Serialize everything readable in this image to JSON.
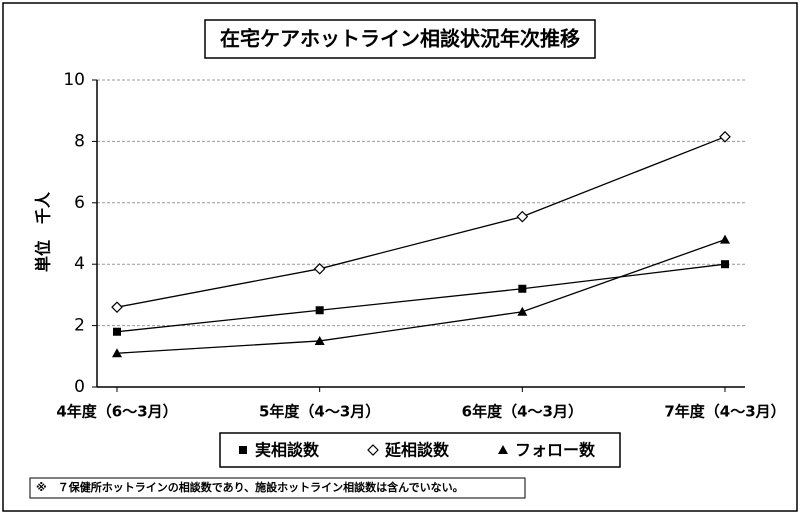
{
  "chart_data": {
    "type": "line",
    "title": "在宅ケアホットライン相談状況年次推移",
    "y_label": "単位　千人",
    "categories": [
      "4年度（6〜3月）",
      "5年度（4〜3月）",
      "6年度（4〜3月）",
      "7年度（4〜3月）"
    ],
    "series": [
      {
        "name": "実相談数",
        "color": "#000000",
        "marker": "square",
        "values": [
          1.8,
          2.5,
          3.2,
          4.0
        ]
      },
      {
        "name": "延相談数",
        "color": "#000000",
        "marker": "diamond",
        "values": [
          2.6,
          3.85,
          5.55,
          8.15
        ]
      },
      {
        "name": "フォロー数",
        "color": "#000000",
        "marker": "triangle",
        "values": [
          1.1,
          1.5,
          2.45,
          4.8
        ]
      }
    ],
    "ylim": [
      0,
      10
    ],
    "yticks": [
      0,
      2,
      4,
      6,
      8,
      10
    ],
    "grid": true,
    "legend": "bottom",
    "note": "※　７保健所ホットラインの相談数であり、施設ホットライン相談数は含んでいない。"
  }
}
